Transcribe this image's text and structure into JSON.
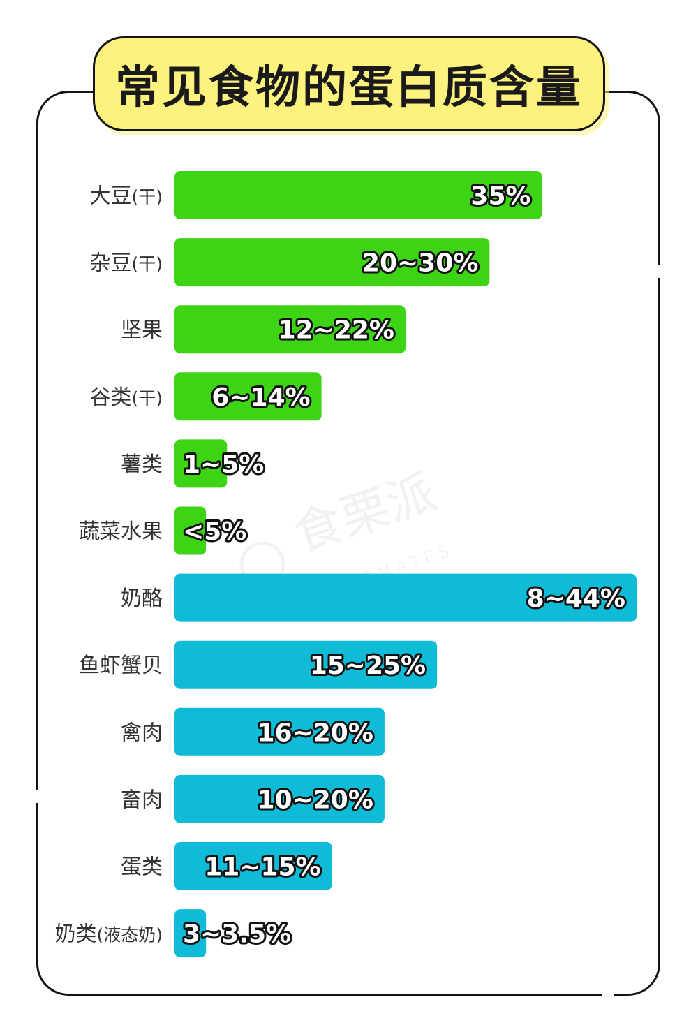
{
  "title": "常见食物的蛋白质含量",
  "watermark": {
    "main": "食栗派",
    "sub": "CHESTNUTMATES"
  },
  "colors": {
    "plant": "#3dd416",
    "animal": "#0fbbd6",
    "title_bg": "#fdf27e",
    "frame": "#141414"
  },
  "chart_data": {
    "type": "bar",
    "orientation": "horizontal",
    "title": "常见食物的蛋白质含量",
    "categories": [
      "大豆(干)",
      "杂豆(干)",
      "坚果",
      "谷类(干)",
      "薯类",
      "蔬菜水果",
      "奶酪",
      "鱼虾蟹贝",
      "禽肉",
      "畜肉",
      "蛋类",
      "奶类(液态奶)"
    ],
    "bars": [
      {
        "label": "大豆",
        "sub": "(干)",
        "value_text": "35%",
        "value": 35,
        "group": "plant"
      },
      {
        "label": "杂豆",
        "sub": "(干)",
        "value_text": "20~30%",
        "value": 30,
        "group": "plant"
      },
      {
        "label": "坚果",
        "sub": "",
        "value_text": "12~22%",
        "value": 22,
        "group": "plant"
      },
      {
        "label": "谷类",
        "sub": "(干)",
        "value_text": "6~14%",
        "value": 14,
        "group": "plant"
      },
      {
        "label": "薯类",
        "sub": "",
        "value_text": "1~5%",
        "value": 5,
        "group": "plant"
      },
      {
        "label": "蔬菜水果",
        "sub": "",
        "value_text": "<5%",
        "value": 3,
        "group": "plant"
      },
      {
        "label": "奶酪",
        "sub": "",
        "value_text": "8~44%",
        "value": 44,
        "group": "animal"
      },
      {
        "label": "鱼虾蟹贝",
        "sub": "",
        "value_text": "15~25%",
        "value": 25,
        "group": "animal"
      },
      {
        "label": "禽肉",
        "sub": "",
        "value_text": "16~20%",
        "value": 20,
        "group": "animal"
      },
      {
        "label": "畜肉",
        "sub": "",
        "value_text": "10~20%",
        "value": 20,
        "group": "animal"
      },
      {
        "label": "蛋类",
        "sub": "",
        "value_text": "11~15%",
        "value": 15,
        "group": "animal"
      },
      {
        "label": "奶类",
        "sub": "(液态奶)",
        "value_text": "3~3.5%",
        "value": 3,
        "group": "animal"
      }
    ],
    "xlim": [
      0,
      44
    ],
    "grid": false,
    "legend": "none"
  }
}
